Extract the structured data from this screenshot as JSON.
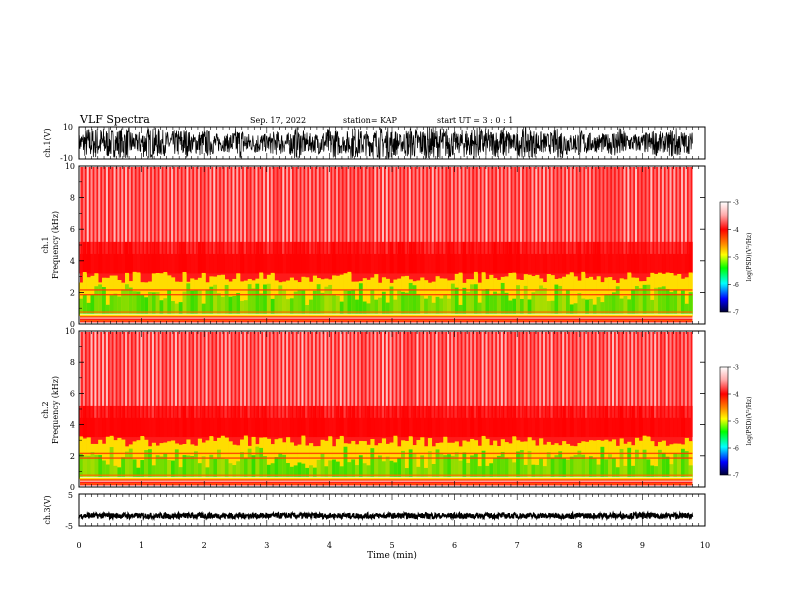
{
  "header": {
    "title": "VLF Spectra",
    "date": "Sep. 17, 2022",
    "station": "station= KAP",
    "start": "start  UT =   3 : 0  : 1"
  },
  "chart_data": [
    {
      "type": "line",
      "name": "ch1-waveform",
      "ylabel": "ch.1(V)",
      "ylim": [
        -10,
        10
      ],
      "yticks": [
        "10",
        "-10"
      ],
      "xlim": [
        0,
        10
      ]
    },
    {
      "type": "heatmap",
      "name": "ch1-spectrogram",
      "ylabel_line1": "ch.1",
      "ylabel_line2": "Frequency  (kHz)",
      "ylim": [
        0,
        10
      ],
      "yticks": [
        "0",
        "2",
        "4",
        "6",
        "8",
        "10"
      ],
      "xlim": [
        0,
        10
      ],
      "data_end_min": 9.8,
      "colorbar": {
        "range": [
          -7,
          -3
        ],
        "ticks": [
          "-3",
          "-4",
          "-5",
          "-6",
          "-7"
        ],
        "label": "log(PSD)(V²/Hz)"
      }
    },
    {
      "type": "heatmap",
      "name": "ch2-spectrogram",
      "ylabel_line1": "ch.2",
      "ylabel_line2": "Frequency  (kHz)",
      "ylim": [
        0,
        10
      ],
      "yticks": [
        "0",
        "2",
        "4",
        "6",
        "8",
        "10"
      ],
      "xlim": [
        0,
        10
      ],
      "data_end_min": 9.8,
      "colorbar": {
        "range": [
          -7,
          -3
        ],
        "ticks": [
          "-3",
          "-4",
          "-5",
          "-6",
          "-7"
        ],
        "label": "log(PSD)(V²/Hz)"
      }
    },
    {
      "type": "line",
      "name": "ch3-waveform",
      "ylabel": "ch.3(V)",
      "ylim": [
        -5,
        5
      ],
      "yticks": [
        "5",
        "-5"
      ],
      "xlim": [
        0,
        10
      ],
      "xlabel": "Time  (min)",
      "xticks": [
        "0",
        "1",
        "2",
        "3",
        "4",
        "5",
        "6",
        "7",
        "8",
        "9",
        "10"
      ]
    }
  ],
  "colors": {
    "high": "#ff0000",
    "mid": "#ffff00",
    "low": "#00ff00",
    "lower": "#00ffff",
    "lowest": "#0000ff",
    "floor": "#000033",
    "background": "#ffffff"
  }
}
